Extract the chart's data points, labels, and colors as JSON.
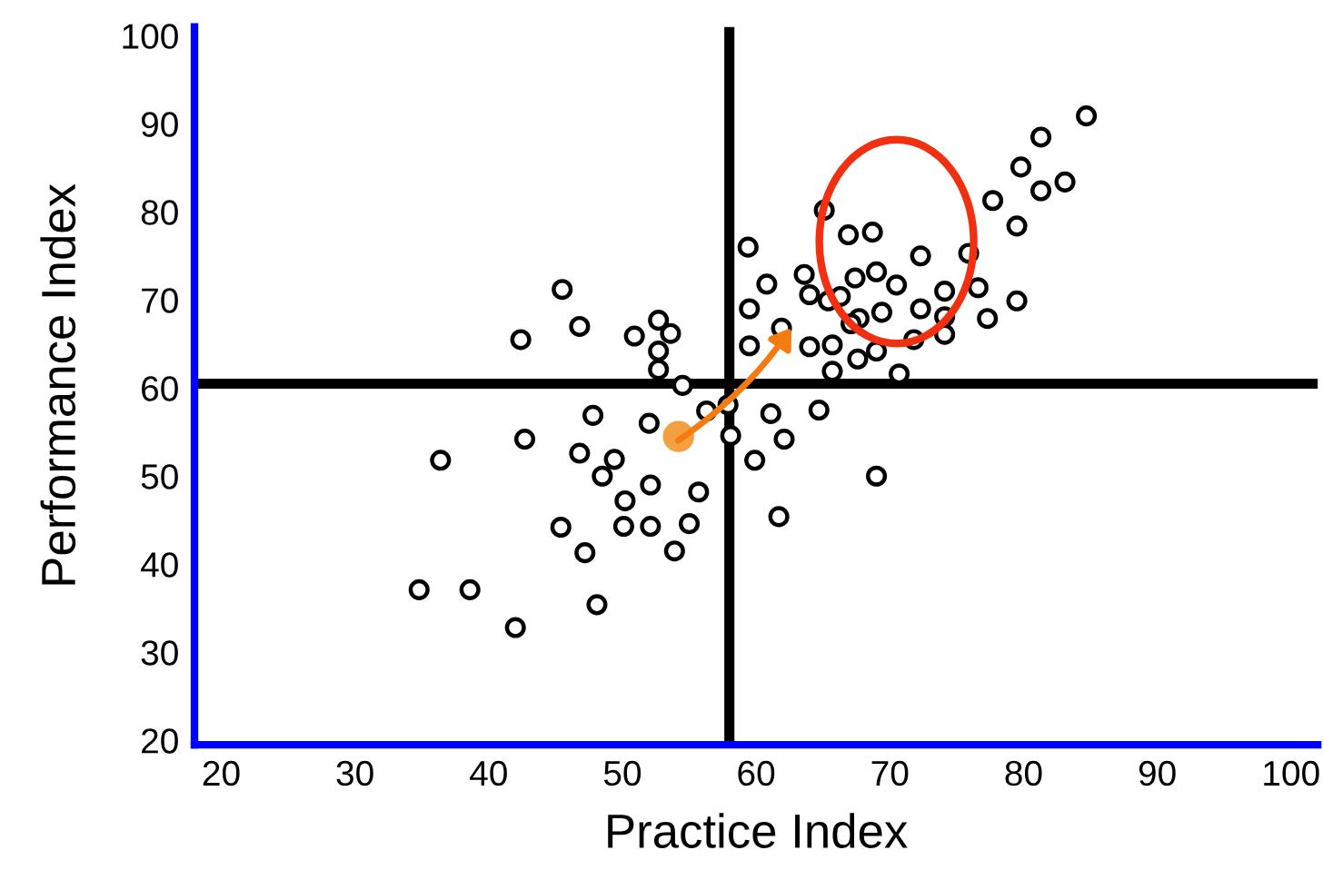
{
  "chart_data": {
    "type": "scatter",
    "xlabel": "Practice Index",
    "ylabel": "Performance Index",
    "xlim": [
      18,
      102
    ],
    "ylim": [
      19.5,
      101
    ],
    "xticks": [
      20,
      30,
      40,
      50,
      60,
      70,
      80,
      90,
      100
    ],
    "yticks": [
      20,
      30,
      40,
      50,
      60,
      70,
      80,
      90,
      100
    ],
    "grid": false,
    "legend": false,
    "marker": "circle",
    "ref_lines": [
      {
        "axis": "x",
        "value": 58,
        "color": "#000000"
      },
      {
        "axis": "y",
        "value": 60.5,
        "color": "#000000"
      }
    ],
    "series": [
      {
        "color": "#000000",
        "x": [
          59.4,
          59.5,
          59.5,
          45.5,
          46.8,
          42.4,
          50.9,
          52.7,
          53.6,
          52.7,
          52.7,
          54.5,
          56.3,
          57.9,
          47.8,
          52.0,
          58.1,
          59.9,
          42.7,
          36.4,
          46.8,
          49.4,
          48.5,
          52.1,
          55.7,
          50.2,
          45.4,
          50.1,
          52.1,
          55.0,
          47.2,
          53.9,
          34.8,
          38.6,
          48.1,
          42.0,
          84.7,
          81.3,
          79.8,
          81.3,
          83.1,
          77.7,
          79.5,
          79.5,
          65.1,
          66.9,
          68.7,
          72.3,
          75.9,
          63.6,
          60.8,
          67.4,
          69.0,
          70.5,
          64.0,
          65.4,
          66.3,
          74.1,
          76.6,
          67.7,
          67.1,
          69.4,
          72.3,
          74.1,
          74.1,
          77.3,
          61.9,
          64.0,
          65.7,
          69.0,
          71.8,
          67.6,
          65.7,
          70.7,
          61.1,
          64.7,
          62.1,
          69.0,
          61.7
        ],
        "values": [
          76.0,
          69.0,
          64.8,
          71.2,
          67.0,
          65.5,
          65.9,
          67.7,
          66.2,
          64.2,
          62.1,
          60.3,
          57.4,
          58.1,
          56.9,
          56.0,
          54.6,
          51.8,
          54.2,
          51.8,
          52.6,
          51.9,
          50.0,
          49.0,
          48.2,
          47.2,
          44.2,
          44.3,
          44.3,
          44.6,
          41.3,
          41.5,
          37.1,
          37.1,
          35.4,
          32.8,
          90.9,
          88.5,
          85.1,
          82.4,
          83.4,
          81.3,
          78.4,
          69.9,
          80.2,
          77.4,
          77.7,
          75.0,
          75.3,
          72.9,
          71.8,
          72.5,
          73.2,
          71.7,
          70.6,
          69.9,
          70.4,
          71.0,
          71.4,
          67.9,
          67.3,
          68.6,
          69.0,
          68.1,
          66.1,
          67.9,
          66.8,
          64.7,
          64.9,
          64.2,
          65.5,
          63.3,
          61.9,
          61.6,
          57.1,
          57.5,
          54.2,
          50.0,
          45.4
        ]
      },
      {
        "color": "#f5a040",
        "x": [
          54.2
        ],
        "values": [
          54.5
        ]
      }
    ]
  }
}
